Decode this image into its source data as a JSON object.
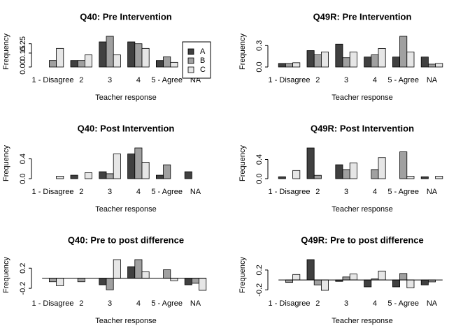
{
  "chart_data": [
    {
      "type": "bar",
      "title": "Q40: Pre Intervention",
      "x_label": "Teacher response",
      "y_label": "Frequency",
      "categories": [
        "1 - Disagree",
        "2",
        "3",
        "4",
        "5 - Agree",
        "NA"
      ],
      "series": [
        {
          "name": "A",
          "color": "#404040",
          "values": [
            0,
            0.07,
            0.27,
            0.27,
            0.07,
            0.27
          ]
        },
        {
          "name": "B",
          "color": "#a0a0a0",
          "values": [
            0.07,
            0.07,
            0.33,
            0.25,
            0.11,
            0
          ]
        },
        {
          "name": "C",
          "color": "#e6e6e6",
          "values": [
            0.2,
            0.13,
            0.13,
            0.2,
            0.05,
            0
          ]
        }
      ],
      "ylim": [
        0,
        0.33
      ],
      "yticks": [
        {
          "value": 0,
          "label": "0.00"
        },
        {
          "value": 0.15,
          "label": "0.15"
        },
        {
          "value": 0.25,
          "label": "0.25"
        }
      ],
      "legend": true
    },
    {
      "type": "bar",
      "title": "Q49R: Pre Intervention",
      "x_label": "Teacher response",
      "y_label": "Frequency",
      "categories": [
        "1 - Disagree",
        "2",
        "3",
        "4",
        "5 - Agree",
        "NA"
      ],
      "series": [
        {
          "name": "A",
          "color": "#404040",
          "values": [
            0.05,
            0.23,
            0.32,
            0.14,
            0.14,
            0.14
          ]
        },
        {
          "name": "B",
          "color": "#a0a0a0",
          "values": [
            0.05,
            0.17,
            0.13,
            0.17,
            0.43,
            0.04
          ]
        },
        {
          "name": "C",
          "color": "#e6e6e6",
          "values": [
            0.06,
            0.21,
            0.21,
            0.26,
            0.21,
            0.05
          ]
        }
      ],
      "ylim": [
        0,
        0.43
      ],
      "yticks": [
        {
          "value": 0,
          "label": "0.0"
        },
        {
          "value": 0.3,
          "label": "0.3"
        }
      ],
      "legend": false
    },
    {
      "type": "bar",
      "title": "Q40: Post Intervention",
      "x_label": "Teacher response",
      "y_label": "Frequency",
      "categories": [
        "1 - Disagree",
        "2",
        "3",
        "4",
        "5 - Agree",
        "NA"
      ],
      "series": [
        {
          "name": "A",
          "color": "#404040",
          "values": [
            0,
            0.07,
            0.14,
            0.5,
            0.07,
            0.14
          ]
        },
        {
          "name": "B",
          "color": "#a0a0a0",
          "values": [
            0,
            0,
            0.1,
            0.62,
            0.28,
            0
          ]
        },
        {
          "name": "C",
          "color": "#e6e6e6",
          "values": [
            0.05,
            0.12,
            0.5,
            0.33,
            0,
            0
          ]
        }
      ],
      "ylim": [
        0,
        0.62
      ],
      "yticks": [
        {
          "value": 0,
          "label": "0.0"
        },
        {
          "value": 0.4,
          "label": "0.4"
        }
      ],
      "legend": false
    },
    {
      "type": "bar",
      "title": "Q49R: Post Intervention",
      "x_label": "Teacher response",
      "y_label": "Frequency",
      "categories": [
        "1 - Disagree",
        "2",
        "3",
        "4",
        "5 - Agree",
        "NA"
      ],
      "series": [
        {
          "name": "A",
          "color": "#404040",
          "values": [
            0.04,
            0.64,
            0.29,
            0,
            0,
            0.04
          ]
        },
        {
          "name": "B",
          "color": "#a0a0a0",
          "values": [
            0,
            0.07,
            0.19,
            0.19,
            0.56,
            0
          ]
        },
        {
          "name": "C",
          "color": "#e6e6e6",
          "values": [
            0.17,
            0,
            0.33,
            0.44,
            0.05,
            0.05
          ]
        }
      ],
      "ylim": [
        0,
        0.64
      ],
      "yticks": [
        {
          "value": 0,
          "label": "0.0"
        },
        {
          "value": 0.4,
          "label": "0.4"
        }
      ],
      "legend": false
    },
    {
      "type": "bar",
      "title": "Q40: Pre to post difference",
      "x_label": "Teacher response",
      "y_label": "Frequency",
      "categories": [
        "1 - Disagree",
        "2",
        "3",
        "4",
        "5 - Agree",
        "NA"
      ],
      "series": [
        {
          "name": "A",
          "color": "#404040",
          "values": [
            0,
            0,
            -0.13,
            0.23,
            0,
            -0.13
          ]
        },
        {
          "name": "B",
          "color": "#a0a0a0",
          "values": [
            -0.07,
            -0.07,
            -0.23,
            0.37,
            0.17,
            -0.1
          ]
        },
        {
          "name": "C",
          "color": "#e6e6e6",
          "values": [
            -0.15,
            0,
            0.37,
            0.13,
            -0.05,
            -0.24
          ]
        }
      ],
      "ylim": [
        -0.24,
        0.37
      ],
      "yticks": [
        -0.2,
        0.2
      ],
      "legend": false
    },
    {
      "type": "bar",
      "title": "Q49R: Pre to post difference",
      "x_label": "Teacher response",
      "y_label": "Frequency",
      "categories": [
        "1 - Disagree",
        "2",
        "3",
        "4",
        "5 - Agree",
        "NA"
      ],
      "series": [
        {
          "name": "A",
          "color": "#404040",
          "values": [
            0,
            0.41,
            -0.03,
            -0.14,
            -0.14,
            -0.1
          ]
        },
        {
          "name": "B",
          "color": "#a0a0a0",
          "values": [
            -0.05,
            -0.1,
            0.06,
            0.02,
            0.13,
            -0.04
          ]
        },
        {
          "name": "C",
          "color": "#e6e6e6",
          "values": [
            0.11,
            -0.21,
            0.12,
            0.18,
            -0.16,
            0
          ]
        }
      ],
      "ylim": [
        -0.21,
        0.41
      ],
      "yticks": [
        -0.2,
        0.2
      ],
      "legend": false
    }
  ]
}
